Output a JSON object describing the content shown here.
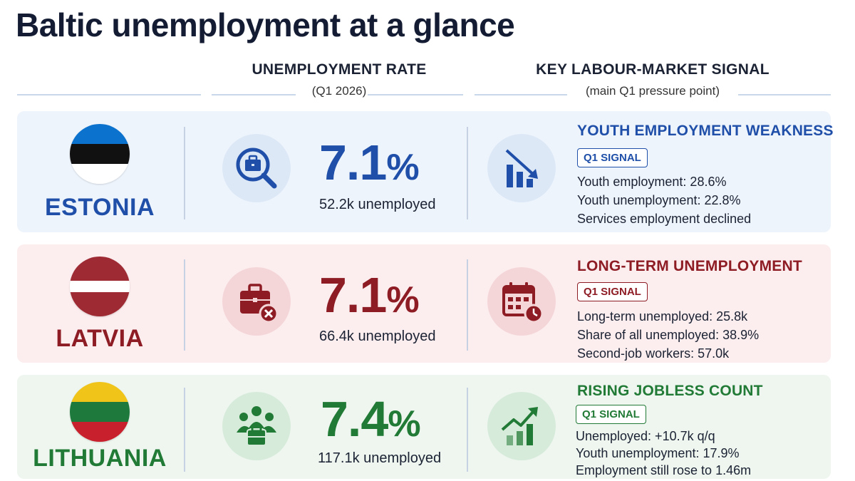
{
  "title": "Baltic unemployment at a glance",
  "headers": {
    "rate_title": "UNEMPLOYMENT RATE",
    "rate_sub": "(Q1 2026)",
    "signal_title": "KEY LABOUR-MARKET SIGNAL",
    "signal_sub": "(main Q1 pressure point)"
  },
  "rows": [
    {
      "country": "ESTONIA",
      "flag_colors": [
        "#0b72ce",
        "#111111",
        "#ffffff"
      ],
      "accent": "#1f4fa8",
      "bg": "#eef4fc",
      "rate_value": "7.1",
      "rate_unit": "%",
      "unemployed": "52.2k unemployed",
      "rate_icon": "magnifier-briefcase-icon",
      "signal_icon": "declining-bar-chart-icon",
      "signal_title": "YOUTH EMPLOYMENT WEAKNESS",
      "badge": "Q1 SIGNAL",
      "lines": [
        "Youth employment: 28.6%",
        "Youth unemployment: 22.8%",
        "Services employment declined"
      ]
    },
    {
      "country": "LATVIA",
      "flag_colors": [
        "#9e2a34",
        "#ffffff",
        "#9e2a34"
      ],
      "accent": "#8e1c24",
      "bg": "#fcedee",
      "rate_value": "7.1",
      "rate_unit": "%",
      "unemployed": "66.4k unemployed",
      "rate_icon": "briefcase-x-icon",
      "signal_icon": "calendar-clock-icon",
      "signal_title": "LONG-TERM UNEMPLOYMENT",
      "badge": "Q1 SIGNAL",
      "lines": [
        "Long-term unemployed: 25.8k",
        "Share of all unemployed: 38.9%",
        "Second-job workers: 57.0k"
      ]
    },
    {
      "country": "LITHUANIA",
      "flag_colors": [
        "#f0c419",
        "#1e7a3c",
        "#c8202d"
      ],
      "accent": "#217a35",
      "bg": "#eef6ef",
      "rate_value": "7.4",
      "rate_unit": "%",
      "unemployed": "117.1k unemployed",
      "rate_icon": "people-briefcase-icon",
      "signal_icon": "rising-bar-chart-icon",
      "signal_title": "RISING JOBLESS COUNT",
      "badge": "Q1 SIGNAL",
      "lines": [
        "Unemployed: +10.7k q/q",
        "Youth unemployment: 17.9%",
        "Employment still rose to 1.46m"
      ]
    }
  ]
}
